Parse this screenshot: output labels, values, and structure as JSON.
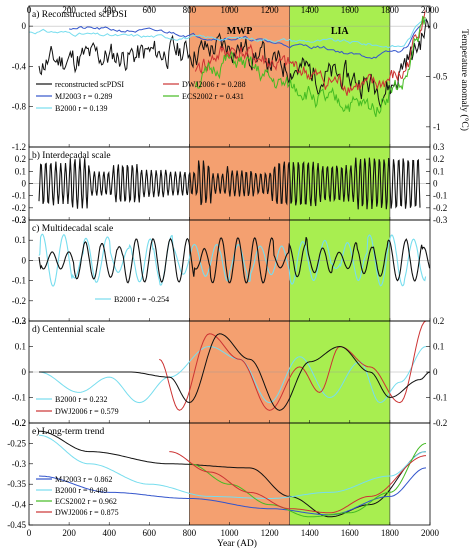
{
  "figure": {
    "x_axis_label": "Year (AD)",
    "right_axis_label": "Temperature anomaly (°C)",
    "x_ticks": [
      0,
      200,
      400,
      600,
      800,
      1000,
      1200,
      1400,
      1600,
      1800,
      2000
    ],
    "eras": [
      {
        "label": "MWP",
        "start": 800,
        "end": 1300,
        "color": "#f4a070"
      },
      {
        "label": "LIA",
        "start": 1300,
        "end": 1800,
        "color": "#a8ee50"
      }
    ]
  },
  "chart_data": [
    {
      "type": "line",
      "title": "a) Reconstructed scPDSI",
      "xlim": [
        0,
        2000
      ],
      "ylim": [
        -1.2,
        0.2
      ],
      "y_ticks": [
        -1.2,
        -0.8,
        -0.4,
        0
      ],
      "right_ylim": [
        -1.2,
        0.2
      ],
      "right_y_ticks": [
        -1,
        -0.5,
        0
      ],
      "legend": [
        {
          "text": "reconstructed scPDSI",
          "color": "#111111"
        },
        {
          "text": "MJ2003 r = 0.289",
          "color": "#3355cc"
        },
        {
          "text": "B2000 r = 0.139",
          "color": "#77ddee"
        },
        {
          "text": "DWJ2006 r = 0.288",
          "color": "#cc3333"
        },
        {
          "text": "ECS2002 r = 0.431",
          "color": "#44bb22"
        }
      ],
      "series": [
        {
          "name": "reconstructed scPDSI",
          "color": "#111111",
          "axis": "left",
          "kind": "noise",
          "seed": 11,
          "start": 50,
          "end": 2000,
          "base": -0.3,
          "amp": 0.22,
          "trend": [
            [
              50,
              -0.35
            ],
            [
              400,
              -0.3
            ],
            [
              800,
              -0.25
            ],
            [
              1000,
              -0.2
            ],
            [
              1300,
              -0.4
            ],
            [
              1500,
              -0.5
            ],
            [
              1800,
              -0.6
            ],
            [
              1900,
              -0.3
            ],
            [
              2000,
              0.0
            ]
          ]
        },
        {
          "name": "MJ2003",
          "color": "#3355cc",
          "axis": "right",
          "kind": "smooth",
          "seed": 21,
          "start": 200,
          "end": 1980,
          "amp": 0.03,
          "points": [
            [
              200,
              -0.02
            ],
            [
              600,
              -0.05
            ],
            [
              1000,
              -0.12
            ],
            [
              1400,
              -0.2
            ],
            [
              1700,
              -0.3
            ],
            [
              1850,
              -0.25
            ],
            [
              1980,
              0.05
            ]
          ]
        },
        {
          "name": "B2000",
          "color": "#77ddee",
          "axis": "right",
          "kind": "smooth",
          "seed": 31,
          "start": 1,
          "end": 1980,
          "amp": 0.03,
          "points": [
            [
              1,
              -0.05
            ],
            [
              500,
              -0.1
            ],
            [
              1000,
              -0.12
            ],
            [
              1500,
              -0.15
            ],
            [
              1850,
              -0.2
            ],
            [
              1980,
              0.08
            ]
          ]
        },
        {
          "name": "DWJ2006",
          "color": "#cc3333",
          "axis": "right",
          "kind": "noise",
          "seed": 41,
          "start": 830,
          "end": 1980,
          "amp": 0.15,
          "points": [
            [
              830,
              -0.4
            ],
            [
              1000,
              -0.25
            ],
            [
              1300,
              -0.4
            ],
            [
              1500,
              -0.55
            ],
            [
              1700,
              -0.6
            ],
            [
              1850,
              -0.5
            ],
            [
              1980,
              0.1
            ]
          ]
        },
        {
          "name": "ECS2002",
          "color": "#44bb22",
          "axis": "right",
          "kind": "noise",
          "seed": 51,
          "start": 830,
          "end": 1980,
          "amp": 0.15,
          "points": [
            [
              830,
              -0.55
            ],
            [
              1000,
              -0.35
            ],
            [
              1300,
              -0.6
            ],
            [
              1500,
              -0.75
            ],
            [
              1700,
              -0.8
            ],
            [
              1850,
              -0.6
            ],
            [
              1980,
              0.05
            ]
          ]
        }
      ]
    },
    {
      "type": "line",
      "title": "b) Interdecadal scale",
      "xlim": [
        0,
        2000
      ],
      "ylim": [
        -0.3,
        0.3
      ],
      "y_ticks": [
        -0.3,
        -0.2,
        -0.1,
        0,
        0.1,
        0.2
      ],
      "right_ylim": [
        -0.3,
        0.3
      ],
      "right_y_ticks": [
        -0.3,
        -0.2,
        -0.1,
        0,
        0.1,
        0.2,
        0.3
      ],
      "legend": [],
      "series": [
        {
          "name": "interdecadal",
          "color": "#111111",
          "axis": "left",
          "kind": "osc",
          "seed": 61,
          "start": 50,
          "end": 1950,
          "period": 24,
          "amp": 0.18
        }
      ]
    },
    {
      "type": "line",
      "title": "c) Multidecadal scale",
      "xlim": [
        0,
        2000
      ],
      "ylim": [
        -0.3,
        0.2
      ],
      "y_ticks": [
        -0.3,
        -0.2,
        -0.1,
        0,
        0.1,
        0.2
      ],
      "right_ylim": [
        -0.3,
        0.2
      ],
      "right_y_ticks": [],
      "legend": [
        {
          "text": "B2000 r = -0.254",
          "color": "#77ddee"
        }
      ],
      "series": [
        {
          "name": "B2000",
          "color": "#77ddee",
          "axis": "left",
          "kind": "osc",
          "seed": 71,
          "start": 50,
          "end": 1980,
          "period": 110,
          "amp": 0.1
        },
        {
          "name": "multidecadal",
          "color": "#111111",
          "axis": "left",
          "kind": "osc",
          "seed": 81,
          "start": 50,
          "end": 2000,
          "period": 85,
          "amp": 0.09
        }
      ]
    },
    {
      "type": "line",
      "title": "d) Centennial scale",
      "xlim": [
        0,
        2000
      ],
      "ylim": [
        -0.2,
        0.2
      ],
      "y_ticks": [
        -0.2,
        -0.1,
        0,
        0.1,
        0.2
      ],
      "right_ylim": [
        -0.2,
        0.2
      ],
      "right_y_ticks": [
        -0.2,
        -0.1,
        0,
        0.1,
        0.2
      ],
      "legend": [
        {
          "text": "B2000 r = 0.232",
          "color": "#77ddee"
        },
        {
          "text": "DWJ2006 r = 0.579",
          "color": "#cc3333"
        }
      ],
      "series": [
        {
          "name": "B2000",
          "color": "#77ddee",
          "axis": "left",
          "kind": "smooth",
          "seed": 91,
          "start": 50,
          "end": 1980,
          "amp": 0.0,
          "points": [
            [
              50,
              0.0
            ],
            [
              250,
              -0.08
            ],
            [
              400,
              -0.02
            ],
            [
              550,
              -0.12
            ],
            [
              700,
              -0.02
            ],
            [
              900,
              0.1
            ],
            [
              1050,
              0.05
            ],
            [
              1200,
              -0.12
            ],
            [
              1350,
              0.06
            ],
            [
              1500,
              -0.1
            ],
            [
              1650,
              0.04
            ],
            [
              1750,
              -0.12
            ],
            [
              1850,
              -0.04
            ],
            [
              1980,
              0.1
            ]
          ]
        },
        {
          "name": "DWJ2006",
          "color": "#cc3333",
          "axis": "right",
          "kind": "smooth",
          "seed": 92,
          "start": 650,
          "end": 1980,
          "amp": 0.0,
          "points": [
            [
              650,
              0.05
            ],
            [
              750,
              -0.15
            ],
            [
              900,
              0.15
            ],
            [
              1050,
              0.05
            ],
            [
              1200,
              -0.15
            ],
            [
              1350,
              0.02
            ],
            [
              1450,
              -0.08
            ],
            [
              1550,
              0.1
            ],
            [
              1700,
              0.02
            ],
            [
              1850,
              -0.12
            ],
            [
              1980,
              0.2
            ]
          ]
        },
        {
          "name": "centennial",
          "color": "#111111",
          "axis": "left",
          "kind": "smooth",
          "seed": 93,
          "start": 50,
          "end": 2000,
          "amp": 0.0,
          "points": [
            [
              50,
              0.0
            ],
            [
              500,
              0.0
            ],
            [
              700,
              -0.02
            ],
            [
              800,
              -0.12
            ],
            [
              950,
              0.15
            ],
            [
              1100,
              0.05
            ],
            [
              1250,
              -0.15
            ],
            [
              1400,
              0.04
            ],
            [
              1550,
              0.1
            ],
            [
              1700,
              0.0
            ],
            [
              1800,
              -0.1
            ],
            [
              1950,
              -0.03
            ],
            [
              2000,
              0.0
            ]
          ]
        }
      ]
    },
    {
      "type": "line",
      "title": "e) Long-term trend",
      "xlim": [
        0,
        2000
      ],
      "ylim": [
        -0.45,
        -0.2
      ],
      "y_ticks": [
        -0.45,
        -0.4,
        -0.35,
        -0.3,
        -0.25,
        -0.2
      ],
      "right_ylim": [
        -0.45,
        -0.2
      ],
      "right_y_ticks": [],
      "legend": [
        {
          "text": "MJ2003 r = 0.862",
          "color": "#3355cc"
        },
        {
          "text": "B2000 r = 0.469",
          "color": "#77ddee"
        },
        {
          "text": "ECS2002 r = 0.962",
          "color": "#44bb22"
        },
        {
          "text": "DWJ2006 r = 0.875",
          "color": "#cc3333"
        }
      ],
      "series": [
        {
          "name": "long-term trend",
          "color": "#111111",
          "axis": "left",
          "kind": "smooth",
          "seed": 0,
          "start": 50,
          "end": 1980,
          "amp": 0.0,
          "points": [
            [
              50,
              -0.22
            ],
            [
              300,
              -0.27
            ],
            [
              700,
              -0.3
            ],
            [
              1100,
              -0.31
            ],
            [
              1300,
              -0.38
            ],
            [
              1500,
              -0.43
            ],
            [
              1700,
              -0.4
            ],
            [
              1980,
              -0.27
            ]
          ]
        },
        {
          "name": "MJ2003",
          "color": "#3355cc",
          "axis": "left",
          "kind": "smooth",
          "seed": 0,
          "start": 50,
          "end": 1980,
          "amp": 0.0,
          "points": [
            [
              50,
              -0.33
            ],
            [
              400,
              -0.37
            ],
            [
              800,
              -0.385
            ],
            [
              1200,
              -0.41
            ],
            [
              1500,
              -0.425
            ],
            [
              1800,
              -0.38
            ],
            [
              1980,
              -0.31
            ]
          ]
        },
        {
          "name": "B2000",
          "color": "#77ddee",
          "axis": "left",
          "kind": "smooth",
          "seed": 0,
          "start": 50,
          "end": 1980,
          "amp": 0.0,
          "points": [
            [
              50,
              -0.23
            ],
            [
              300,
              -0.3
            ],
            [
              600,
              -0.35
            ],
            [
              900,
              -0.38
            ],
            [
              1200,
              -0.385
            ],
            [
              1500,
              -0.37
            ],
            [
              1800,
              -0.33
            ],
            [
              1980,
              -0.27
            ]
          ]
        },
        {
          "name": "ECS2002",
          "color": "#44bb22",
          "axis": "left",
          "kind": "smooth",
          "seed": 0,
          "start": 800,
          "end": 1980,
          "amp": 0.0,
          "points": [
            [
              800,
              -0.3
            ],
            [
              1000,
              -0.35
            ],
            [
              1200,
              -0.4
            ],
            [
              1400,
              -0.43
            ],
            [
              1600,
              -0.42
            ],
            [
              1800,
              -0.37
            ],
            [
              1980,
              -0.25
            ]
          ]
        },
        {
          "name": "DWJ2006",
          "color": "#cc3333",
          "axis": "left",
          "kind": "smooth",
          "seed": 0,
          "start": 700,
          "end": 1980,
          "amp": 0.0,
          "points": [
            [
              700,
              -0.27
            ],
            [
              900,
              -0.32
            ],
            [
              1100,
              -0.37
            ],
            [
              1300,
              -0.41
            ],
            [
              1500,
              -0.42
            ],
            [
              1700,
              -0.38
            ],
            [
              1980,
              -0.28
            ]
          ]
        }
      ]
    }
  ]
}
